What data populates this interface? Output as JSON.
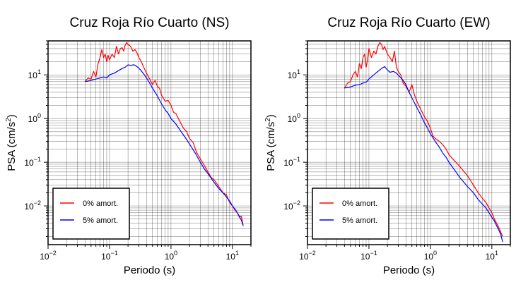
{
  "figure": {
    "background": "#ffffff"
  },
  "chart_data": [
    {
      "type": "line",
      "title": "Cruz Roja Río Cuarto (NS)",
      "xlabel": "Periodo (s)",
      "ylabel_main": "PSA (cm/s",
      "ylabel_sup": "2",
      "ylabel_end": ")",
      "xscale": "log",
      "yscale": "log",
      "xlim": [
        0.01,
        20
      ],
      "ylim": [
        0.0013,
        60
      ],
      "grid": true,
      "legend_position": "bottom-left",
      "x_ticks": [
        {
          "base": "10",
          "exp": "−2",
          "value": 0.01
        },
        {
          "base": "10",
          "exp": "−1",
          "value": 0.1
        },
        {
          "base": "10",
          "exp": "0",
          "value": 1
        },
        {
          "base": "10",
          "exp": "1",
          "value": 10
        }
      ],
      "y_ticks": [
        {
          "base": "10",
          "exp": "−2",
          "value": 0.01
        },
        {
          "base": "10",
          "exp": "−1",
          "value": 0.1
        },
        {
          "base": "10",
          "exp": "0",
          "value": 1
        },
        {
          "base": "10",
          "exp": "1",
          "value": 10
        }
      ],
      "series": [
        {
          "name": "0% amort.",
          "color": "#ff0000",
          "x": [
            0.04,
            0.045,
            0.05,
            0.055,
            0.06,
            0.065,
            0.07,
            0.075,
            0.08,
            0.085,
            0.09,
            0.095,
            0.1,
            0.11,
            0.12,
            0.13,
            0.14,
            0.15,
            0.16,
            0.17,
            0.18,
            0.19,
            0.2,
            0.22,
            0.24,
            0.26,
            0.28,
            0.3,
            0.33,
            0.36,
            0.4,
            0.45,
            0.5,
            0.55,
            0.6,
            0.65,
            0.7,
            0.8,
            0.9,
            1.0,
            1.1,
            1.2,
            1.4,
            1.6,
            1.8,
            2.0,
            2.3,
            2.6,
            3.0,
            3.4,
            4.0,
            4.5,
            5.0,
            6.0,
            7.0,
            8.0,
            9.0,
            10.0,
            11.0,
            12.0,
            13.0,
            14.0,
            15.0
          ],
          "y": [
            7.0,
            8.5,
            8.0,
            12.0,
            9.0,
            18.0,
            25.0,
            38.0,
            25.0,
            30.0,
            20.0,
            28.0,
            22.0,
            30.0,
            25.0,
            45.0,
            30.0,
            40.0,
            42.0,
            35.0,
            48.0,
            55.0,
            50.0,
            45.0,
            35.0,
            38.0,
            32.0,
            25.0,
            20.0,
            15.0,
            11.0,
            8.0,
            6.0,
            7.5,
            5.5,
            5.0,
            3.5,
            2.5,
            2.6,
            2.0,
            1.4,
            1.3,
            0.85,
            0.6,
            0.5,
            0.35,
            0.28,
            0.17,
            0.12,
            0.09,
            0.06,
            0.045,
            0.04,
            0.028,
            0.02,
            0.018,
            0.012,
            0.01,
            0.008,
            0.007,
            0.0055,
            0.0058,
            0.0035
          ]
        },
        {
          "name": "5% amort.",
          "color": "#0000ff",
          "x": [
            0.04,
            0.05,
            0.06,
            0.07,
            0.08,
            0.09,
            0.1,
            0.12,
            0.14,
            0.16,
            0.18,
            0.2,
            0.22,
            0.25,
            0.28,
            0.32,
            0.36,
            0.4,
            0.45,
            0.5,
            0.6,
            0.7,
            0.8,
            0.9,
            1.0,
            1.2,
            1.4,
            1.6,
            1.8,
            2.0,
            2.5,
            3.0,
            3.5,
            4.0,
            5.0,
            6.0,
            7.0,
            8.0,
            9.0,
            10.0,
            11.0,
            12.0,
            13.0,
            14.0,
            15.0
          ],
          "y": [
            7.0,
            7.5,
            8.0,
            8.5,
            9.0,
            8.5,
            10.0,
            11.0,
            12.5,
            14.0,
            15.0,
            17.0,
            16.5,
            17.0,
            15.5,
            13.0,
            10.5,
            8.5,
            6.5,
            5.0,
            3.3,
            2.2,
            1.6,
            1.3,
            1.0,
            0.75,
            0.55,
            0.42,
            0.33,
            0.26,
            0.16,
            0.1,
            0.07,
            0.055,
            0.035,
            0.025,
            0.02,
            0.016,
            0.013,
            0.01,
            0.0085,
            0.007,
            0.0058,
            0.0047,
            0.0035
          ]
        }
      ]
    },
    {
      "type": "line",
      "title": "Cruz Roja Río Cuarto (EW)",
      "xlabel": "Periodo (s)",
      "ylabel_main": "PSA (cm/s",
      "ylabel_sup": "2",
      "ylabel_end": ")",
      "xscale": "log",
      "yscale": "log",
      "xlim": [
        0.01,
        20
      ],
      "ylim": [
        0.0013,
        60
      ],
      "grid": true,
      "legend_position": "bottom-left",
      "x_ticks": [
        {
          "base": "10",
          "exp": "−2",
          "value": 0.01
        },
        {
          "base": "10",
          "exp": "−1",
          "value": 0.1
        },
        {
          "base": "10",
          "exp": "0",
          "value": 1
        },
        {
          "base": "10",
          "exp": "1",
          "value": 10
        }
      ],
      "y_ticks": [
        {
          "base": "10",
          "exp": "−2",
          "value": 0.01
        },
        {
          "base": "10",
          "exp": "−1",
          "value": 0.1
        },
        {
          "base": "10",
          "exp": "0",
          "value": 1
        },
        {
          "base": "10",
          "exp": "1",
          "value": 10
        }
      ],
      "series": [
        {
          "name": "0% amort.",
          "color": "#ff0000",
          "x": [
            0.04,
            0.045,
            0.05,
            0.055,
            0.06,
            0.065,
            0.07,
            0.075,
            0.08,
            0.085,
            0.09,
            0.095,
            0.1,
            0.11,
            0.12,
            0.13,
            0.14,
            0.15,
            0.16,
            0.17,
            0.18,
            0.2,
            0.22,
            0.24,
            0.26,
            0.28,
            0.3,
            0.33,
            0.36,
            0.4,
            0.45,
            0.5,
            0.55,
            0.6,
            0.7,
            0.8,
            0.9,
            1.0,
            1.1,
            1.2,
            1.4,
            1.6,
            1.8,
            2.0,
            2.3,
            2.6,
            3.0,
            3.4,
            4.0,
            4.5,
            5.0,
            6.0,
            7.0,
            8.0,
            9.0,
            10.0,
            11.0,
            12.0,
            13.0,
            14.0,
            15.0
          ],
          "y": [
            5.0,
            6.5,
            7.0,
            10.0,
            12.0,
            9.0,
            18.0,
            14.0,
            25.0,
            30.0,
            15.0,
            22.0,
            40.0,
            25.0,
            35.0,
            30.0,
            45.0,
            55.0,
            50.0,
            38.0,
            45.0,
            30.0,
            25.0,
            20.0,
            35.0,
            15.0,
            12.0,
            10.0,
            6.5,
            5.5,
            4.0,
            6.0,
            3.5,
            2.5,
            1.6,
            1.1,
            0.85,
            0.6,
            0.4,
            0.35,
            0.3,
            0.25,
            0.2,
            0.15,
            0.12,
            0.1,
            0.08,
            0.065,
            0.05,
            0.038,
            0.03,
            0.02,
            0.015,
            0.012,
            0.009,
            0.007,
            0.005,
            0.004,
            0.0032,
            0.0025,
            0.002
          ]
        },
        {
          "name": "5% amort.",
          "color": "#0000ff",
          "x": [
            0.04,
            0.05,
            0.06,
            0.07,
            0.08,
            0.09,
            0.1,
            0.12,
            0.14,
            0.16,
            0.18,
            0.2,
            0.22,
            0.25,
            0.28,
            0.32,
            0.36,
            0.4,
            0.45,
            0.5,
            0.6,
            0.7,
            0.8,
            0.9,
            1.0,
            1.2,
            1.4,
            1.6,
            1.8,
            2.0,
            2.5,
            3.0,
            3.5,
            4.0,
            5.0,
            6.0,
            7.0,
            8.0,
            9.0,
            10.0,
            11.0,
            12.0,
            13.0,
            14.0,
            15.0
          ],
          "y": [
            5.0,
            5.3,
            5.8,
            6.0,
            6.5,
            6.8,
            8.0,
            10.0,
            12.0,
            14.0,
            15.5,
            13.0,
            11.5,
            12.0,
            11.0,
            9.0,
            7.5,
            6.0,
            4.0,
            3.0,
            1.8,
            1.2,
            0.8,
            0.6,
            0.45,
            0.3,
            0.22,
            0.16,
            0.13,
            0.1,
            0.065,
            0.045,
            0.035,
            0.028,
            0.02,
            0.014,
            0.011,
            0.009,
            0.007,
            0.0055,
            0.0045,
            0.0035,
            0.0028,
            0.0022,
            0.0015
          ]
        }
      ]
    }
  ]
}
